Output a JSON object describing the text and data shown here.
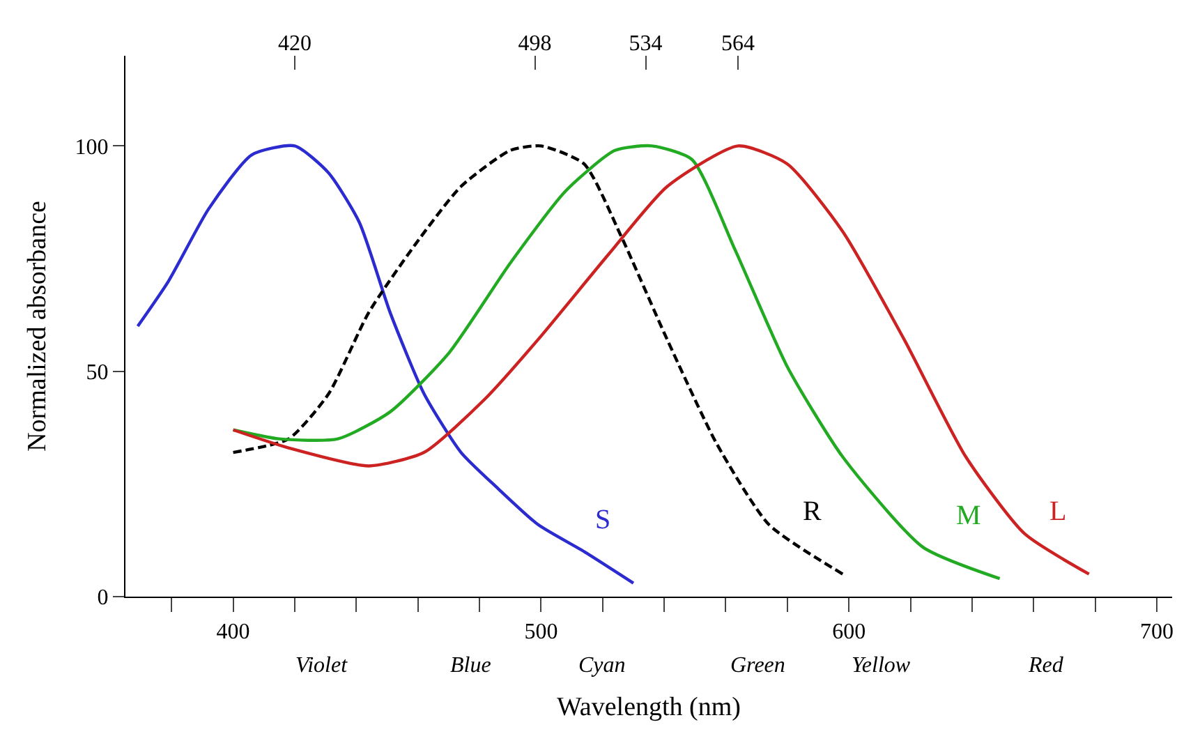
{
  "chart_data": {
    "type": "line",
    "xlabel": "Wavelength (nm)",
    "ylabel": "Normalized absorbance",
    "xlim": [
      365,
      705
    ],
    "ylim": [
      0,
      120
    ],
    "xticks": [
      {
        "value": 380,
        "label": null
      },
      400,
      {
        "value": 420,
        "label": null
      },
      {
        "value": 440,
        "label": null
      },
      {
        "value": 460,
        "label": null
      },
      {
        "value": 480,
        "label": null
      },
      500,
      {
        "value": 520,
        "label": null
      },
      {
        "value": 540,
        "label": null
      },
      {
        "value": 560,
        "label": null
      },
      {
        "value": 580,
        "label": null
      },
      600,
      {
        "value": 620,
        "label": null
      },
      {
        "value": 640,
        "label": null
      },
      {
        "value": 660,
        "label": null
      },
      {
        "value": 680,
        "label": null
      },
      700
    ],
    "yticks": [
      0,
      50,
      100
    ],
    "x2lim": [
      365,
      705
    ],
    "x2ticks": [
      420,
      498,
      534,
      564
    ],
    "legend": false,
    "marker": "none",
    "series": [
      {
        "name": "S",
        "color": "#2b2bd0",
        "line_style": "solid",
        "x": [
          369,
          379,
          392,
          406,
          420,
          431,
          441,
          451,
          462,
          474,
          486,
          499,
          514,
          530
        ],
        "values": [
          60,
          70,
          86,
          98,
          100,
          94,
          83,
          63,
          45,
          32,
          24,
          16,
          10,
          3
        ]
      },
      {
        "name": "R",
        "color": "#000000",
        "line_style": "dashed",
        "x": [
          400,
          418,
          431,
          444,
          459,
          474,
          490,
          500,
          514,
          526,
          541,
          557,
          574,
          598
        ],
        "values": [
          32,
          35,
          45,
          63,
          78,
          91,
          99,
          100,
          96,
          80,
          57,
          34,
          16,
          5
        ]
      },
      {
        "name": "M",
        "color": "#22aa22",
        "line_style": "solid",
        "x": [
          400,
          415,
          434,
          451,
          470,
          490,
          508,
          524,
          536,
          549,
          563,
          580,
          598,
          624,
          649
        ],
        "values": [
          37,
          35,
          35,
          41,
          54,
          74,
          90,
          99,
          100,
          97,
          77,
          51,
          31,
          11,
          4
        ]
      },
      {
        "name": "L",
        "color": "#cc2222",
        "line_style": "solid",
        "x": [
          400,
          418,
          444,
          462,
          482,
          499,
          522,
          541,
          564,
          580,
          598,
          618,
          638,
          657,
          678
        ],
        "values": [
          37,
          33,
          29,
          32,
          44,
          57,
          76,
          91,
          100,
          96,
          81,
          57,
          31,
          14,
          5
        ]
      }
    ],
    "annotations": [
      "Violet",
      "Blue",
      "Cyan",
      "Green",
      "Yellow",
      "Red"
    ]
  }
}
